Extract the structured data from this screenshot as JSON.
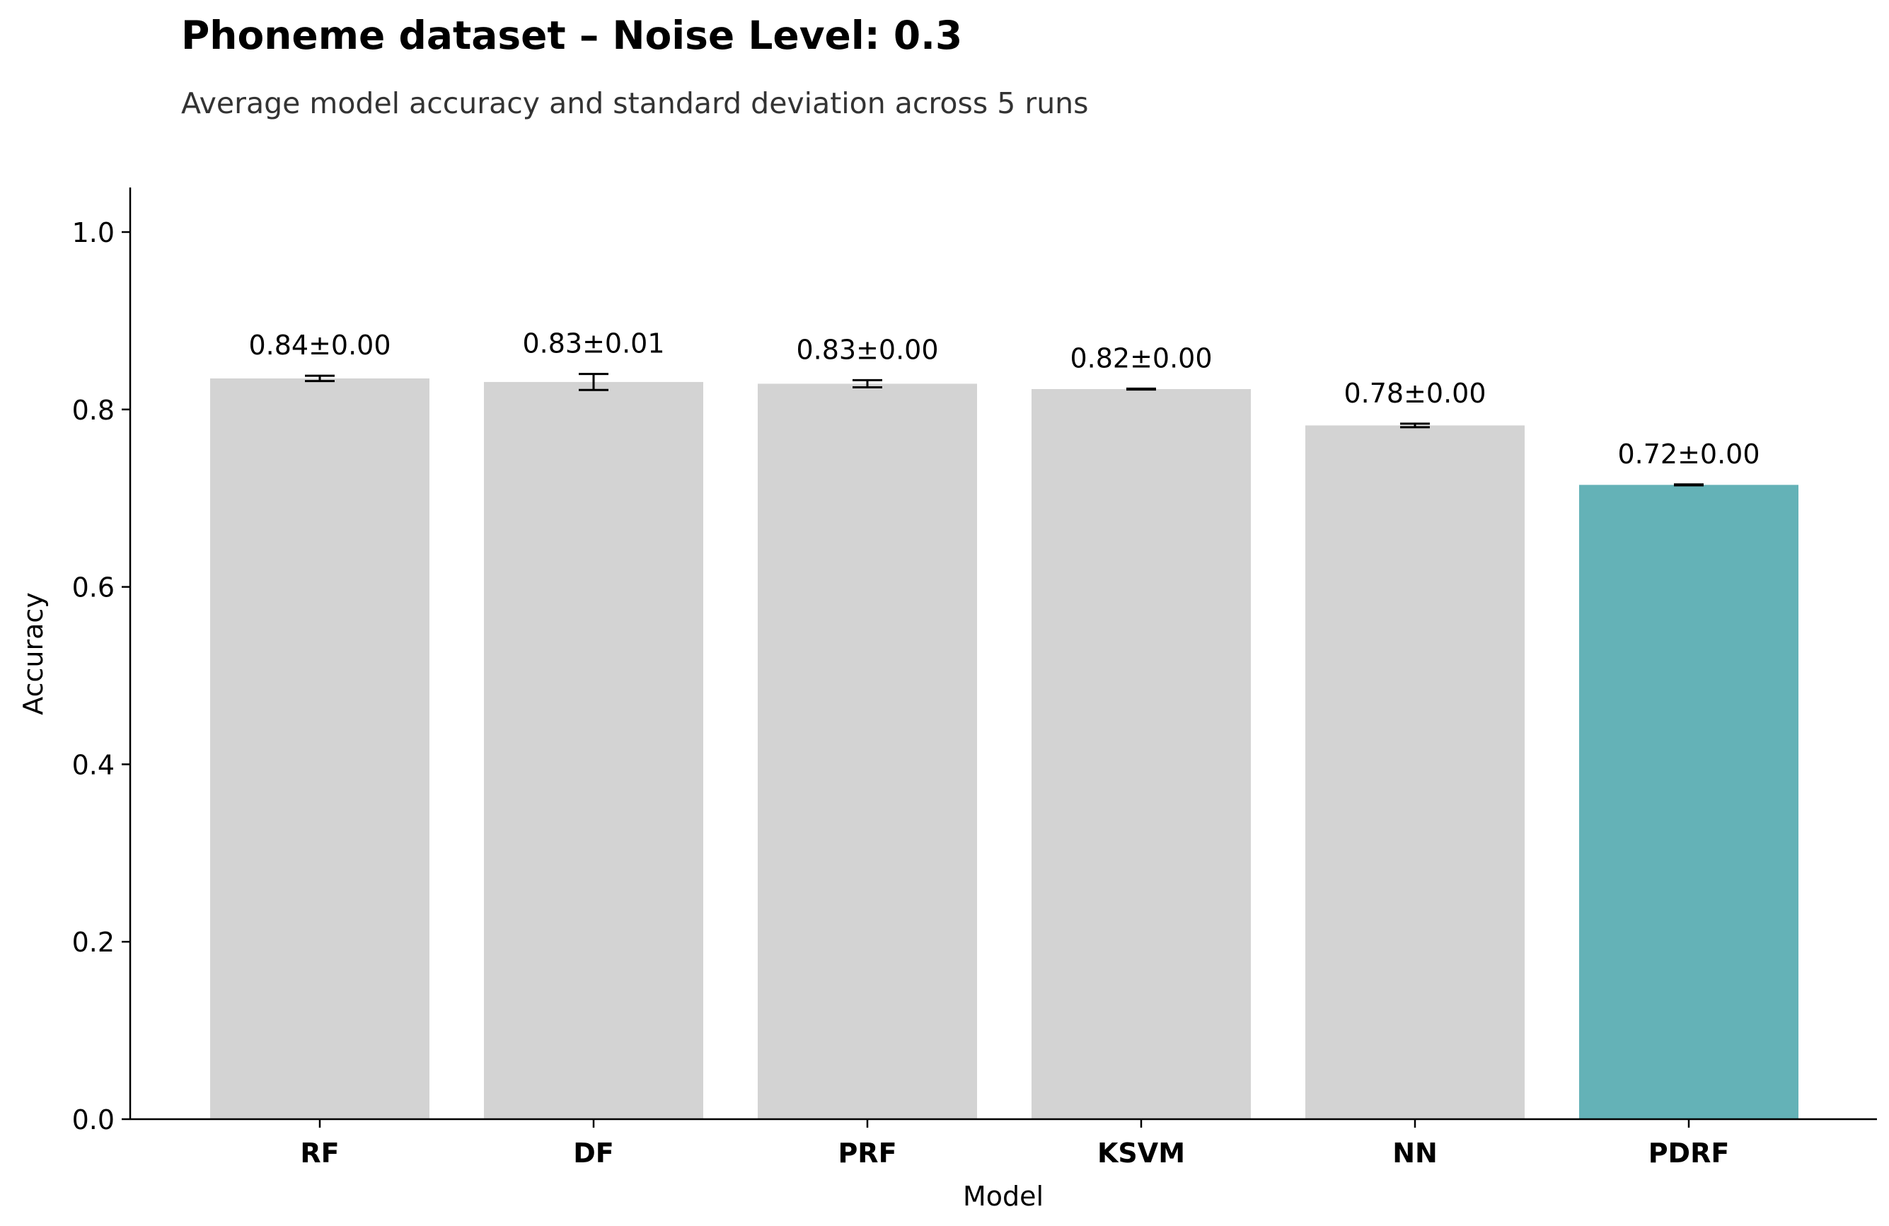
{
  "chart_data": {
    "type": "bar",
    "title": "Phoneme dataset – Noise Level: 0.3",
    "subtitle": "Average model accuracy and standard deviation across 5 runs",
    "xlabel": "Model",
    "ylabel": "Accuracy",
    "ylim": [
      0,
      1.05
    ],
    "yticks": [
      "0.0",
      "0.2",
      "0.4",
      "0.6",
      "0.8",
      "1.0"
    ],
    "categories": [
      "RF",
      "DF",
      "PRF",
      "KSVM",
      "NN",
      "PDRF"
    ],
    "values": [
      0.835,
      0.831,
      0.829,
      0.823,
      0.782,
      0.715
    ],
    "errors": [
      0.003,
      0.009,
      0.004,
      0.0005,
      0.002,
      0.0005
    ],
    "labels": [
      "0.84±0.00",
      "0.83±0.01",
      "0.83±0.00",
      "0.82±0.00",
      "0.78±0.00",
      "0.72±0.00"
    ],
    "bar_colors": [
      "#d3d3d3",
      "#d3d3d3",
      "#d3d3d3",
      "#d3d3d3",
      "#d3d3d3",
      "#64b2b7"
    ],
    "grid": false,
    "legend": "none"
  }
}
